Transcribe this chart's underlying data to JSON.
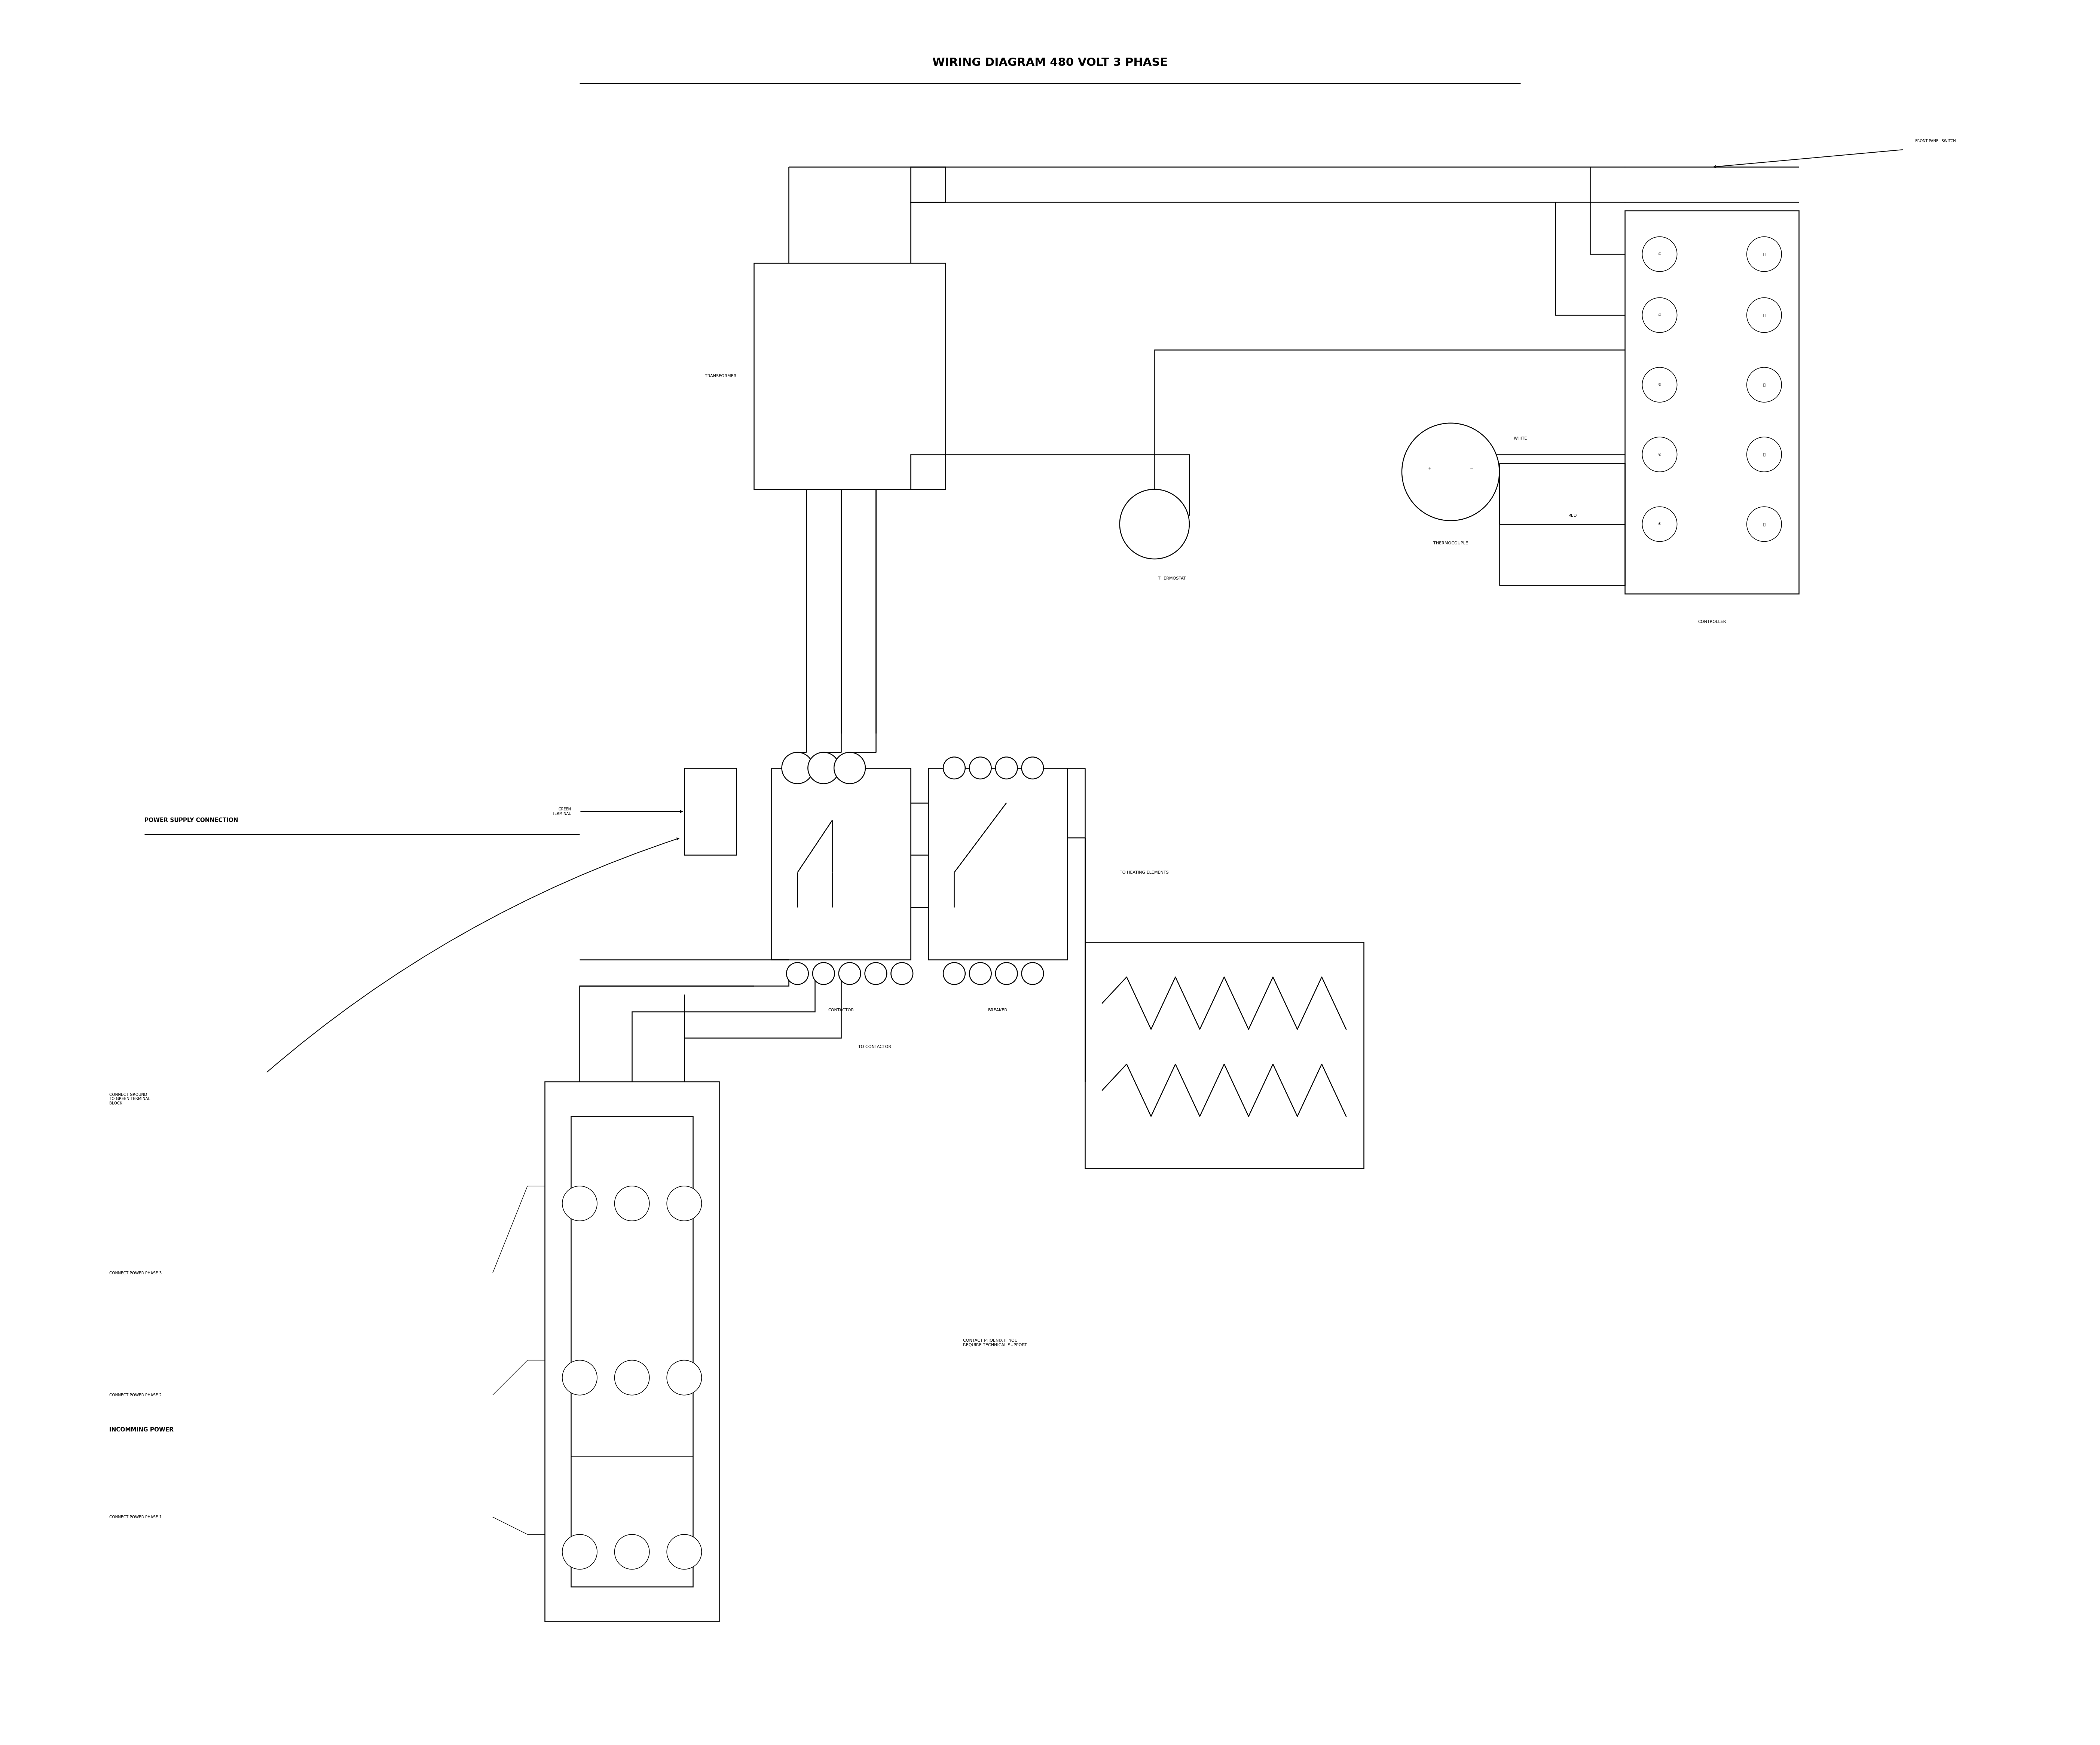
{
  "title": "WIRING DIAGRAM 480 VOLT 3 PHASE",
  "background_color": "#ffffff",
  "line_color": "#000000",
  "text_color": "#000000",
  "fig_width": 56.13,
  "fig_height": 46.64,
  "labels": {
    "transformer": "TRANSFORMER",
    "thermostat": "THERMOSTAT",
    "thermocouple": "THERMOCOUPLE",
    "controller": "CONTROLLER",
    "front_panel_switch": "FRONT PANEL SWITCH",
    "green_terminal": "GREEN\nTERMINAL",
    "contactor": "CONTACTOR",
    "breaker": "BREAKER",
    "to_heating": "TO HEATING ELEMENTS",
    "to_contactor": "TO CONTACTOR",
    "power_supply": "POWER SUPPLY CONNECTION",
    "incoming_power": "INCOMMING POWER",
    "phase1": "CONNECT POWER PHASE 1",
    "phase2": "CONNECT POWER PHASE 2",
    "phase3": "CONNECT POWER PHASE 3",
    "ground": "CONNECT GROUND\nTO GREEN TERMINAL\nBLOCK",
    "contact": "CONTACT PHOENIX IF YOU\nREQUIRE TECHNICAL SUPPORT",
    "white": "WHITE",
    "red": "RED"
  }
}
